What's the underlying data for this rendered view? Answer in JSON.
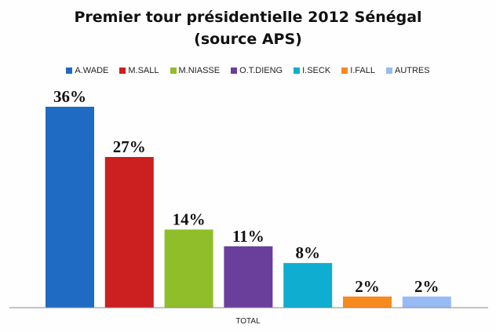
{
  "chart_data": {
    "type": "bar",
    "title": "Premier tour présidentielle 2012 Sénégal",
    "subtitle": "(source APS)",
    "xlabel": "TOTAL",
    "ylabel": "",
    "categories": [
      "TOTAL"
    ],
    "series": [
      {
        "name": "A.WADE",
        "values": [
          36
        ],
        "label": "36%",
        "color": "#1f6bc4"
      },
      {
        "name": "M.SALL",
        "values": [
          27
        ],
        "label": "27%",
        "color": "#cc1f1f"
      },
      {
        "name": "M.NIASSE",
        "values": [
          14
        ],
        "label": "14%",
        "color": "#8fbe2a"
      },
      {
        "name": "O.T.DIENG",
        "values": [
          11
        ],
        "label": "11%",
        "color": "#6a3f9b"
      },
      {
        "name": "I.SECK",
        "values": [
          8
        ],
        "label": "8%",
        "color": "#0fadcf"
      },
      {
        "name": "I.FALL",
        "values": [
          2
        ],
        "label": "2%",
        "color": "#f78a1d"
      },
      {
        "name": "AUTRES",
        "values": [
          2
        ],
        "label": "2%",
        "color": "#99bbf4"
      }
    ],
    "ylim": [
      0,
      40
    ],
    "grid": false,
    "legend_position": "top"
  }
}
